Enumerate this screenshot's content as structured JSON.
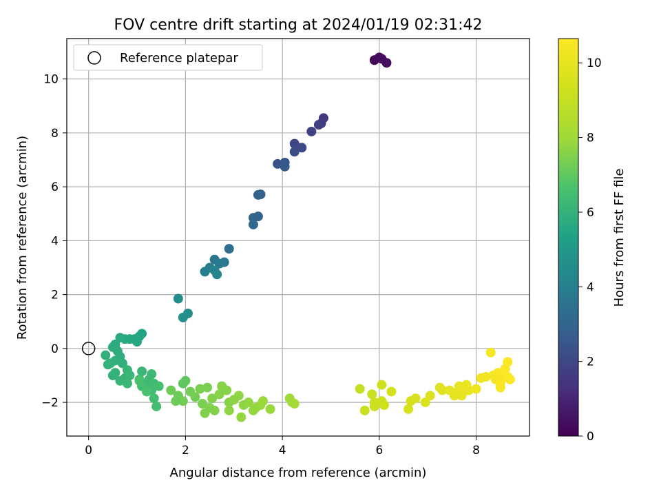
{
  "chart_data": {
    "type": "scatter",
    "title": "FOV centre drift starting at 2024/01/19 02:31:42",
    "xlabel": "Angular distance from reference (arcmin)",
    "ylabel": "Rotation from reference (arcmin)",
    "xlim": [
      -0.45,
      9.1
    ],
    "ylim": [
      -3.25,
      11.5
    ],
    "xticks": [
      "0",
      "2",
      "4",
      "6",
      "8"
    ],
    "xtick_values": [
      0,
      2,
      4,
      6,
      8
    ],
    "yticks": [
      "−2",
      "0",
      "2",
      "4",
      "6",
      "8",
      "10"
    ],
    "ytick_values": [
      -2,
      0,
      2,
      4,
      6,
      8,
      10
    ],
    "grid": true,
    "colormap": "viridis",
    "colorbar": {
      "label": "Hours from first FF file",
      "range": [
        0,
        10.65
      ],
      "ticks": [
        "0",
        "2",
        "4",
        "6",
        "8",
        "10"
      ],
      "tick_values": [
        0,
        2,
        4,
        6,
        8,
        10
      ]
    },
    "legend": {
      "position": "top-left",
      "entries": [
        {
          "label": "Reference platepar",
          "marker": "open-circle"
        }
      ]
    },
    "reference_point": {
      "x": 0,
      "y": 0
    },
    "series": [
      {
        "points": [
          [
            5.9,
            10.7,
            0.1
          ],
          [
            6.0,
            10.8,
            0.2
          ],
          [
            6.05,
            10.75,
            0.3
          ],
          [
            6.15,
            10.6,
            0.4
          ],
          [
            4.85,
            8.55,
            1.5
          ],
          [
            4.8,
            8.35,
            1.6
          ],
          [
            4.75,
            8.3,
            1.7
          ],
          [
            4.6,
            8.05,
            1.8
          ],
          [
            4.25,
            7.6,
            2.0
          ],
          [
            4.4,
            7.45,
            2.1
          ],
          [
            4.25,
            7.3,
            2.2
          ],
          [
            3.9,
            6.85,
            2.4
          ],
          [
            4.05,
            6.9,
            2.5
          ],
          [
            4.05,
            6.75,
            2.6
          ],
          [
            3.5,
            5.7,
            2.8
          ],
          [
            3.55,
            5.72,
            2.9
          ],
          [
            3.5,
            4.9,
            3.0
          ],
          [
            3.4,
            4.85,
            3.05
          ],
          [
            3.4,
            4.6,
            3.1
          ],
          [
            2.9,
            3.7,
            3.4
          ],
          [
            2.6,
            3.3,
            3.6
          ],
          [
            2.8,
            3.2,
            3.7
          ],
          [
            2.7,
            3.15,
            3.8
          ],
          [
            2.5,
            3.0,
            3.9
          ],
          [
            2.4,
            2.85,
            4.0
          ],
          [
            2.6,
            2.9,
            4.1
          ],
          [
            2.65,
            2.75,
            4.2
          ],
          [
            2.05,
            1.3,
            4.5
          ],
          [
            1.85,
            1.85,
            4.6
          ],
          [
            1.95,
            1.15,
            4.7
          ],
          [
            1.1,
            0.55,
            5.4
          ],
          [
            1.05,
            0.45,
            5.5
          ],
          [
            0.95,
            0.35,
            5.5
          ],
          [
            1.0,
            0.25,
            5.6
          ],
          [
            0.85,
            0.35,
            5.6
          ],
          [
            0.75,
            0.35,
            5.6
          ],
          [
            0.65,
            0.4,
            5.7
          ],
          [
            0.55,
            0.15,
            5.7
          ],
          [
            0.5,
            0.05,
            5.8
          ],
          [
            0.6,
            -0.1,
            5.8
          ],
          [
            0.65,
            -0.3,
            5.8
          ],
          [
            0.7,
            -0.55,
            5.9
          ],
          [
            0.55,
            -0.45,
            5.9
          ],
          [
            0.45,
            -0.55,
            5.9
          ],
          [
            0.35,
            -0.25,
            5.9
          ],
          [
            0.4,
            -0.6,
            6.0
          ],
          [
            0.55,
            -0.9,
            6.0
          ],
          [
            0.5,
            -1.0,
            6.0
          ],
          [
            0.65,
            -1.2,
            6.1
          ],
          [
            0.8,
            -0.8,
            6.1
          ],
          [
            0.75,
            -1.1,
            6.1
          ],
          [
            0.85,
            -1.0,
            6.2
          ],
          [
            0.8,
            -1.3,
            6.2
          ],
          [
            1.1,
            -0.85,
            6.2
          ],
          [
            1.05,
            -1.15,
            6.3
          ],
          [
            1.15,
            -1.3,
            6.3
          ],
          [
            1.3,
            -0.95,
            6.3
          ],
          [
            1.25,
            -1.15,
            6.3
          ],
          [
            1.35,
            -1.3,
            6.4
          ],
          [
            1.2,
            -1.45,
            6.4
          ],
          [
            1.3,
            -1.55,
            6.4
          ],
          [
            1.45,
            -1.4,
            6.5
          ],
          [
            1.35,
            -1.85,
            6.5
          ],
          [
            1.4,
            -2.15,
            6.5
          ],
          [
            1.1,
            -1.4,
            6.5
          ],
          [
            1.2,
            -1.6,
            6.6
          ],
          [
            1.05,
            -1.2,
            6.6
          ],
          [
            1.95,
            -1.3,
            7.0
          ],
          [
            2.0,
            -1.2,
            7.0
          ],
          [
            1.7,
            -1.55,
            7.2
          ],
          [
            1.85,
            -1.75,
            7.2
          ],
          [
            1.95,
            -1.95,
            7.3
          ],
          [
            2.1,
            -1.6,
            7.3
          ],
          [
            2.2,
            -1.8,
            7.3
          ],
          [
            2.3,
            -1.5,
            7.4
          ],
          [
            2.45,
            -1.45,
            7.4
          ],
          [
            2.35,
            -2.05,
            7.4
          ],
          [
            2.5,
            -2.2,
            7.5
          ],
          [
            2.4,
            -2.4,
            7.5
          ],
          [
            2.6,
            -2.3,
            7.5
          ],
          [
            2.55,
            -1.85,
            7.5
          ],
          [
            2.7,
            -1.7,
            7.6
          ],
          [
            2.85,
            -1.55,
            7.6
          ],
          [
            2.75,
            -1.4,
            7.6
          ],
          [
            2.9,
            -2.0,
            7.6
          ],
          [
            2.9,
            -2.3,
            7.7
          ],
          [
            3.1,
            -1.75,
            7.7
          ],
          [
            3.2,
            -2.1,
            7.7
          ],
          [
            3.15,
            -2.55,
            7.8
          ],
          [
            3.3,
            -2.0,
            7.8
          ],
          [
            3.4,
            -2.3,
            7.8
          ],
          [
            3.55,
            -2.1,
            7.9
          ],
          [
            3.6,
            -1.95,
            7.9
          ],
          [
            3.75,
            -2.25,
            7.9
          ],
          [
            4.15,
            -1.85,
            8.0
          ],
          [
            4.2,
            -2.0,
            8.0
          ],
          [
            4.25,
            -2.05,
            8.1
          ],
          [
            1.8,
            -1.95,
            7.2
          ],
          [
            3.45,
            -2.2,
            7.85
          ],
          [
            3.0,
            -1.9,
            7.65
          ],
          [
            5.6,
            -1.5,
            9.0
          ],
          [
            5.7,
            -2.3,
            9.1
          ],
          [
            5.85,
            -1.7,
            9.1
          ],
          [
            5.9,
            -2.0,
            9.2
          ],
          [
            5.9,
            -2.15,
            9.2
          ],
          [
            6.05,
            -1.35,
            9.3
          ],
          [
            6.05,
            -1.95,
            9.3
          ],
          [
            6.1,
            -2.1,
            9.3
          ],
          [
            6.25,
            -1.6,
            9.4
          ],
          [
            6.6,
            -2.25,
            9.5
          ],
          [
            6.65,
            -1.95,
            9.5
          ],
          [
            6.75,
            -1.85,
            9.6
          ],
          [
            6.95,
            -2.0,
            9.6
          ],
          [
            7.05,
            -1.75,
            9.7
          ],
          [
            7.25,
            -1.45,
            9.8
          ],
          [
            7.3,
            -1.55,
            9.8
          ],
          [
            7.45,
            -1.55,
            9.9
          ],
          [
            7.55,
            -1.65,
            9.9
          ],
          [
            7.6,
            -1.7,
            10.0
          ],
          [
            7.65,
            -1.4,
            10.0
          ],
          [
            7.7,
            -1.75,
            10.0
          ],
          [
            7.8,
            -1.35,
            10.1
          ],
          [
            7.85,
            -1.55,
            10.1
          ],
          [
            8.0,
            -1.5,
            10.2
          ],
          [
            8.1,
            -1.1,
            10.3
          ],
          [
            8.2,
            -1.05,
            10.3
          ],
          [
            8.3,
            -0.15,
            10.4
          ],
          [
            8.35,
            -1.0,
            10.4
          ],
          [
            8.4,
            -1.15,
            10.4
          ],
          [
            8.45,
            -0.9,
            10.5
          ],
          [
            8.5,
            -1.3,
            10.5
          ],
          [
            8.55,
            -1.1,
            10.5
          ],
          [
            8.6,
            -0.75,
            10.6
          ],
          [
            8.65,
            -0.5,
            10.6
          ],
          [
            8.65,
            -1.05,
            10.6
          ],
          [
            8.7,
            -1.15,
            10.65
          ],
          [
            8.5,
            -1.45,
            10.5
          ],
          [
            7.55,
            -1.75,
            9.95
          ],
          [
            7.75,
            -1.6,
            10.05
          ]
        ]
      }
    ]
  }
}
